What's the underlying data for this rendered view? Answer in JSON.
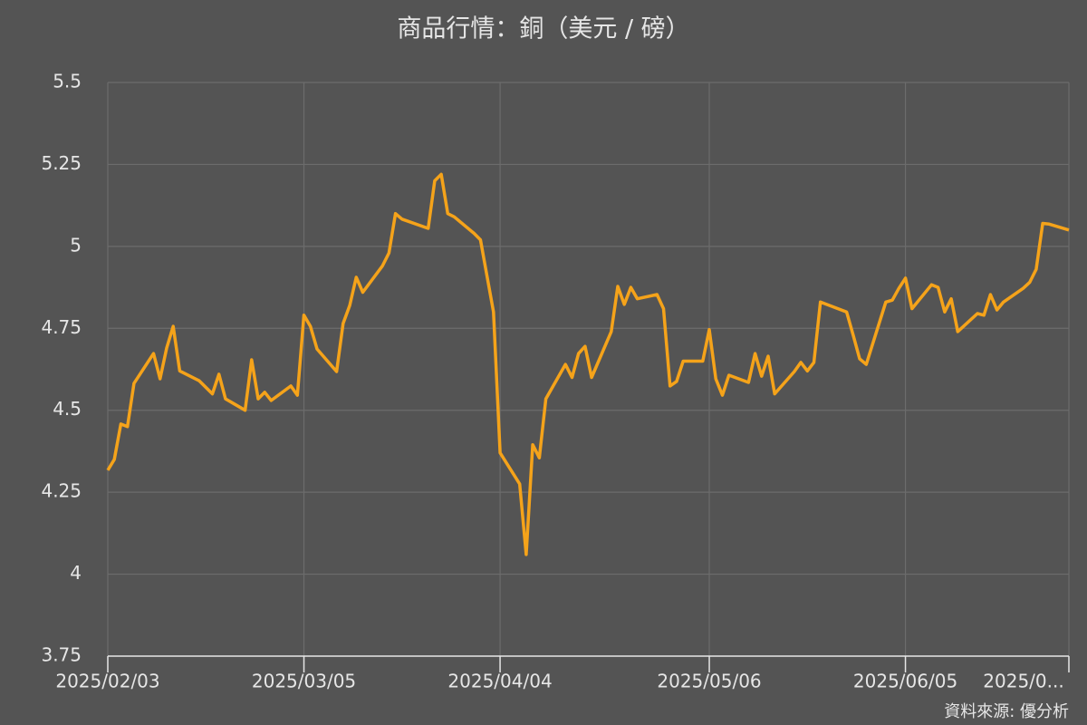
{
  "chart_data": {
    "type": "line",
    "title": "商品行情：銅（美元 / 磅）",
    "source": "資料來源: 優分析",
    "x": [
      "2025/02/03",
      "2025/02/04",
      "2025/02/05",
      "2025/02/06",
      "2025/02/07",
      "2025/02/10",
      "2025/02/11",
      "2025/02/12",
      "2025/02/13",
      "2025/02/14",
      "2025/02/17",
      "2025/02/19",
      "2025/02/20",
      "2025/02/21",
      "2025/02/24",
      "2025/02/25",
      "2025/02/26",
      "2025/02/27",
      "2025/02/28",
      "2025/03/03",
      "2025/03/04",
      "2025/03/05",
      "2025/03/06",
      "2025/03/07",
      "2025/03/10",
      "2025/03/11",
      "2025/03/12",
      "2025/03/13",
      "2025/03/14",
      "2025/03/17",
      "2025/03/18",
      "2025/03/19",
      "2025/03/20",
      "2025/03/24",
      "2025/03/25",
      "2025/03/26",
      "2025/03/27",
      "2025/03/28",
      "2025/03/31",
      "2025/04/01",
      "2025/04/02",
      "2025/04/03",
      "2025/04/04",
      "2025/04/07",
      "2025/04/08",
      "2025/04/09",
      "2025/04/10",
      "2025/04/11",
      "2025/04/14",
      "2025/04/15",
      "2025/04/16",
      "2025/04/17",
      "2025/04/18",
      "2025/04/21",
      "2025/04/22",
      "2025/04/23",
      "2025/04/24",
      "2025/04/25",
      "2025/04/28",
      "2025/04/29",
      "2025/04/30",
      "2025/05/01",
      "2025/05/02",
      "2025/05/05",
      "2025/05/06",
      "2025/05/07",
      "2025/05/08",
      "2025/05/09",
      "2025/05/12",
      "2025/05/13",
      "2025/05/14",
      "2025/05/15",
      "2025/05/16",
      "2025/05/19",
      "2025/05/20",
      "2025/05/21",
      "2025/05/22",
      "2025/05/23",
      "2025/05/27",
      "2025/05/28",
      "2025/05/29",
      "2025/05/30",
      "2025/06/02",
      "2025/06/03",
      "2025/06/04",
      "2025/06/05",
      "2025/06/06",
      "2025/06/09",
      "2025/06/10",
      "2025/06/11",
      "2025/06/12",
      "2025/06/13",
      "2025/06/16",
      "2025/06/17",
      "2025/06/18",
      "2025/06/19",
      "2025/06/20",
      "2025/06/23",
      "2025/06/24",
      "2025/06/25",
      "2025/06/26",
      "2025/06/27",
      "2025/06/30"
    ],
    "values": [
      4.317,
      4.35,
      4.458,
      4.45,
      4.582,
      4.673,
      4.596,
      4.69,
      4.756,
      4.62,
      4.59,
      4.55,
      4.61,
      4.535,
      4.5,
      4.654,
      4.535,
      4.555,
      4.53,
      4.574,
      4.546,
      4.79,
      4.756,
      4.687,
      4.618,
      4.765,
      4.82,
      4.906,
      4.86,
      4.94,
      4.98,
      5.1,
      5.083,
      5.055,
      5.2,
      5.22,
      5.1,
      5.09,
      5.04,
      5.02,
      4.91,
      4.8,
      4.37,
      4.275,
      4.06,
      4.395,
      4.355,
      4.535,
      4.64,
      4.6,
      4.673,
      4.695,
      4.6,
      4.74,
      4.878,
      4.823,
      4.875,
      4.84,
      4.853,
      4.81,
      4.574,
      4.588,
      4.65,
      4.65,
      4.746,
      4.596,
      4.546,
      4.607,
      4.585,
      4.673,
      4.604,
      4.665,
      4.55,
      4.618,
      4.646,
      4.62,
      4.646,
      4.83,
      4.8,
      4.73,
      4.657,
      4.64,
      4.83,
      4.836,
      4.872,
      4.903,
      4.81,
      4.883,
      4.875,
      4.8,
      4.84,
      4.74,
      4.795,
      4.79,
      4.853,
      4.806,
      4.83,
      4.872,
      4.89,
      4.93,
      5.07,
      5.068,
      5.05
    ],
    "color": "#f5a31a",
    "xlim": [
      "2025/02/03",
      "2025/06/30"
    ],
    "xticks": [
      "2025/02/03",
      "2025/03/05",
      "2025/04/04",
      "2025/05/06",
      "2025/06/05",
      {
        "value": "2025/06/30",
        "label": "2025/0..."
      }
    ],
    "ylim": [
      3.75,
      5.5
    ],
    "yticks": [
      3.75,
      4,
      4.25,
      4.5,
      4.75,
      5,
      5.25,
      5.5
    ],
    "grid": true
  }
}
